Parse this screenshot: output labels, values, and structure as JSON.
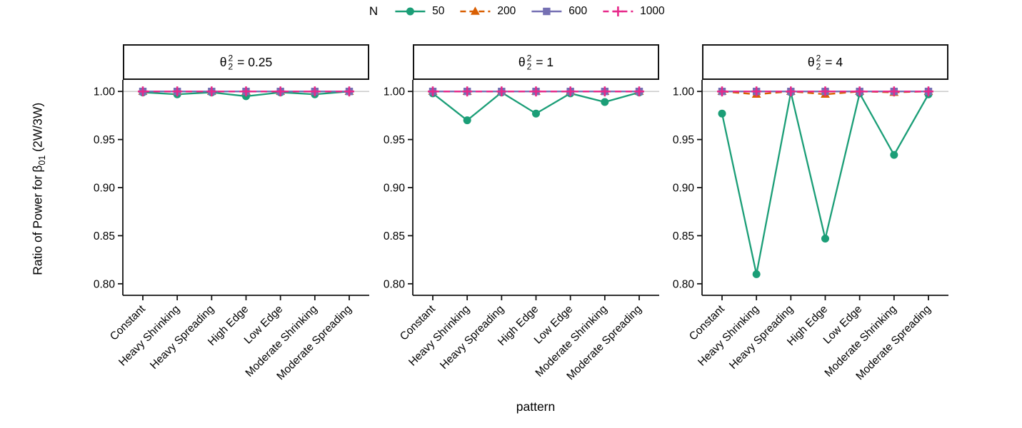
{
  "colors": {
    "n50": "#1B9E77",
    "n200": "#D95F02",
    "n600": "#7570B3",
    "n1000": "#E7298A",
    "reference_line": "#c6c6c6",
    "axis": "#141414",
    "text": "#000000"
  },
  "legend": {
    "title": "N",
    "items": [
      {
        "label": "50",
        "color": "#1B9E77",
        "marker": "circle",
        "line": "solid"
      },
      {
        "label": "200",
        "color": "#D95F02",
        "marker": "triangle",
        "line": "dashed"
      },
      {
        "label": "600",
        "color": "#7570B3",
        "marker": "square",
        "line": "solid"
      },
      {
        "label": "1000",
        "color": "#E7298A",
        "marker": "plus",
        "line": "dashed"
      }
    ]
  },
  "axes": {
    "y_title": {
      "prefix": "Ratio of Power for",
      "beta": "β",
      "sub": "01",
      "suffix": "(2W/3W)"
    },
    "x_title": "pattern"
  },
  "chart_data": {
    "type": "line",
    "categories": [
      "Constant",
      "Heavy Shrinking",
      "Heavy Spreading",
      "High Edge",
      "Low Edge",
      "Moderate Shrinking",
      "Moderate Spreading"
    ],
    "yticks": [
      "1.00",
      "0.95",
      "0.90",
      "0.85",
      "0.80"
    ],
    "ylim": [
      0.788,
      1.012
    ],
    "reference_line": 1.0,
    "series_names": [
      "50",
      "200",
      "600",
      "1000"
    ],
    "legend_position": "top",
    "grid": "off",
    "facets": [
      {
        "title": {
          "theta": "θ",
          "sup": "2",
          "sub": "2",
          "eq": "= 0.25"
        },
        "series": [
          {
            "name": "50",
            "values": [
              0.999,
              0.997,
              0.999,
              0.995,
              0.999,
              0.997,
              1.0
            ]
          },
          {
            "name": "200",
            "values": [
              1.0,
              1.0,
              1.0,
              1.0,
              1.0,
              1.0,
              1.0
            ]
          },
          {
            "name": "600",
            "values": [
              1.0,
              1.0,
              1.0,
              1.0,
              1.0,
              1.0,
              1.0
            ]
          },
          {
            "name": "1000",
            "values": [
              1.0,
              1.0,
              1.0,
              1.0,
              1.0,
              1.0,
              1.0
            ]
          }
        ]
      },
      {
        "title": {
          "theta": "θ",
          "sup": "2",
          "sub": "2",
          "eq": "= 1"
        },
        "series": [
          {
            "name": "50",
            "values": [
              0.998,
              0.97,
              0.999,
              0.977,
              0.998,
              0.989,
              0.999
            ]
          },
          {
            "name": "200",
            "values": [
              1.0,
              1.0,
              1.0,
              1.0,
              1.0,
              1.0,
              1.0
            ]
          },
          {
            "name": "600",
            "values": [
              1.0,
              1.0,
              1.0,
              1.0,
              1.0,
              1.0,
              1.0
            ]
          },
          {
            "name": "1000",
            "values": [
              1.0,
              1.0,
              1.0,
              1.0,
              1.0,
              1.0,
              1.0
            ]
          }
        ]
      },
      {
        "title": {
          "theta": "θ",
          "sup": "2",
          "sub": "2",
          "eq": "= 4"
        },
        "series": [
          {
            "name": "50",
            "values": [
              0.977,
              0.81,
              0.999,
              0.847,
              0.998,
              0.934,
              0.997
            ]
          },
          {
            "name": "200",
            "values": [
              1.0,
              0.997,
              1.0,
              0.997,
              1.0,
              0.999,
              1.0
            ]
          },
          {
            "name": "600",
            "values": [
              1.0,
              1.0,
              1.0,
              1.0,
              1.0,
              1.0,
              1.0
            ]
          },
          {
            "name": "1000",
            "values": [
              1.0,
              1.0,
              1.0,
              1.0,
              1.0,
              1.0,
              1.0
            ]
          }
        ]
      }
    ]
  }
}
